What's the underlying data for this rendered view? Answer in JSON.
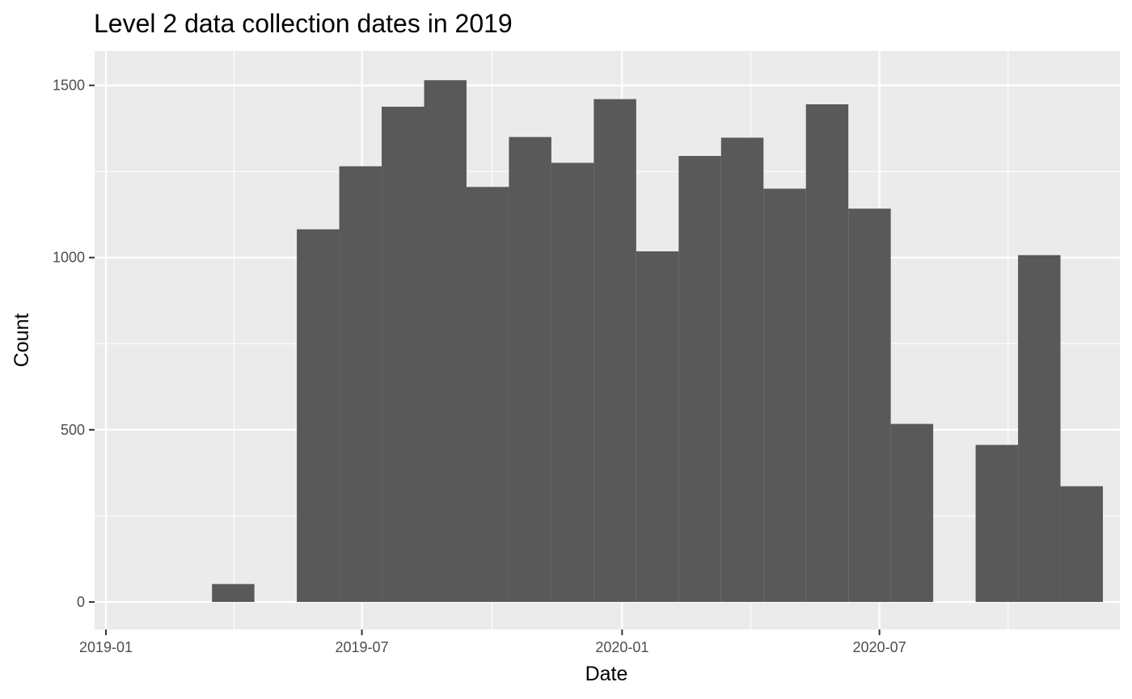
{
  "chart_data": {
    "type": "bar",
    "title": "Level 2 data collection dates in 2019",
    "xlabel": "Date",
    "ylabel": "Count",
    "x_ticks": [
      "2019-01",
      "2019-07",
      "2020-01",
      "2020-07"
    ],
    "y_ticks": [
      "0",
      "500",
      "1000",
      "1500"
    ],
    "ylim": [
      -80,
      1600
    ],
    "xlim": [
      "2018-12-24",
      "2020-12-18"
    ],
    "grid": true,
    "bar_color": "#595959",
    "panel_background": "#ebebeb",
    "bins": [
      {
        "start": "2019-03-17",
        "end": "2019-04-16",
        "value": 52
      },
      {
        "start": "2019-04-16",
        "end": "2019-05-16",
        "value": 0
      },
      {
        "start": "2019-05-16",
        "end": "2019-06-15",
        "value": 1082
      },
      {
        "start": "2019-06-15",
        "end": "2019-07-15",
        "value": 1265
      },
      {
        "start": "2019-07-15",
        "end": "2019-08-14",
        "value": 1438
      },
      {
        "start": "2019-08-14",
        "end": "2019-09-13",
        "value": 1515
      },
      {
        "start": "2019-09-13",
        "end": "2019-10-13",
        "value": 1205
      },
      {
        "start": "2019-10-13",
        "end": "2019-11-12",
        "value": 1350
      },
      {
        "start": "2019-11-12",
        "end": "2019-12-12",
        "value": 1275
      },
      {
        "start": "2019-12-12",
        "end": "2020-01-11",
        "value": 1460
      },
      {
        "start": "2020-01-11",
        "end": "2020-02-10",
        "value": 1018
      },
      {
        "start": "2020-02-10",
        "end": "2020-03-11",
        "value": 1295
      },
      {
        "start": "2020-03-11",
        "end": "2020-04-10",
        "value": 1348
      },
      {
        "start": "2020-04-10",
        "end": "2020-05-10",
        "value": 1200
      },
      {
        "start": "2020-05-10",
        "end": "2020-06-09",
        "value": 1445
      },
      {
        "start": "2020-06-09",
        "end": "2020-07-09",
        "value": 1142
      },
      {
        "start": "2020-07-09",
        "end": "2020-08-08",
        "value": 517
      },
      {
        "start": "2020-08-08",
        "end": "2020-09-07",
        "value": 0
      },
      {
        "start": "2020-09-07",
        "end": "2020-10-07",
        "value": 456
      },
      {
        "start": "2020-10-07",
        "end": "2020-11-06",
        "value": 1007
      },
      {
        "start": "2020-11-06",
        "end": "2020-12-06",
        "value": 336
      }
    ]
  }
}
